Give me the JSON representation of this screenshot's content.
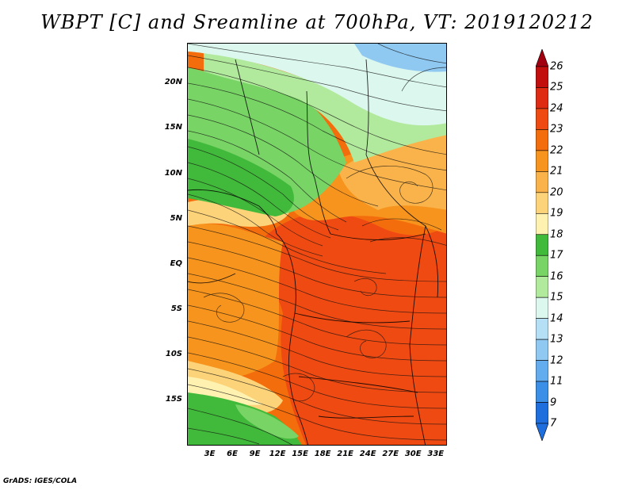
{
  "title": "WBPT [C] and Sreamline at 700hPa, VT: 2019120212",
  "footer": "GrADS: IGES/COLA",
  "y_axis": {
    "labels": [
      "20N",
      "15N",
      "10N",
      "5N",
      "EQ",
      "5S",
      "10S",
      "15S"
    ],
    "values": [
      20,
      15,
      10,
      5,
      0,
      -5,
      -10,
      -15
    ],
    "range": [
      -20,
      24.5
    ]
  },
  "x_axis": {
    "labels": [
      "3E",
      "6E",
      "9E",
      "12E",
      "15E",
      "18E",
      "21E",
      "24E",
      "27E",
      "30E",
      "33E"
    ],
    "values": [
      3,
      6,
      9,
      12,
      15,
      18,
      21,
      24,
      27,
      30,
      33
    ],
    "range": [
      0,
      34.5
    ]
  },
  "colorbar": {
    "levels": [
      "26",
      "25",
      "24",
      "23",
      "22",
      "21",
      "20",
      "19",
      "18",
      "17",
      "16",
      "15",
      "14",
      "13",
      "12",
      "11",
      "9",
      "7"
    ],
    "colors": [
      "#a0000f",
      "#c30e0e",
      "#df2b12",
      "#ef4a12",
      "#f46d0d",
      "#f7941d",
      "#fab34a",
      "#fdd37a",
      "#fff2b0",
      "#41b93a",
      "#79d466",
      "#b2ea9d",
      "#dcf7ee",
      "#b5dff5",
      "#8fc9f2",
      "#63acee",
      "#3b8fe6",
      "#1e6ede"
    ],
    "max_color": "#a0000f",
    "min_color": "#1e6ede"
  },
  "map_colors": {
    "ocean_cool": "#dcf7ee",
    "light_green": "#b2ea9d",
    "green": "#79d466",
    "dark_green": "#41b93a",
    "cream": "#fff2b0",
    "yellow": "#fdd37a",
    "light_orange": "#fab34a",
    "orange": "#f7941d",
    "dark_orange": "#f46d0d",
    "red_orange": "#ef4a12",
    "blue": "#8fc9f2"
  }
}
